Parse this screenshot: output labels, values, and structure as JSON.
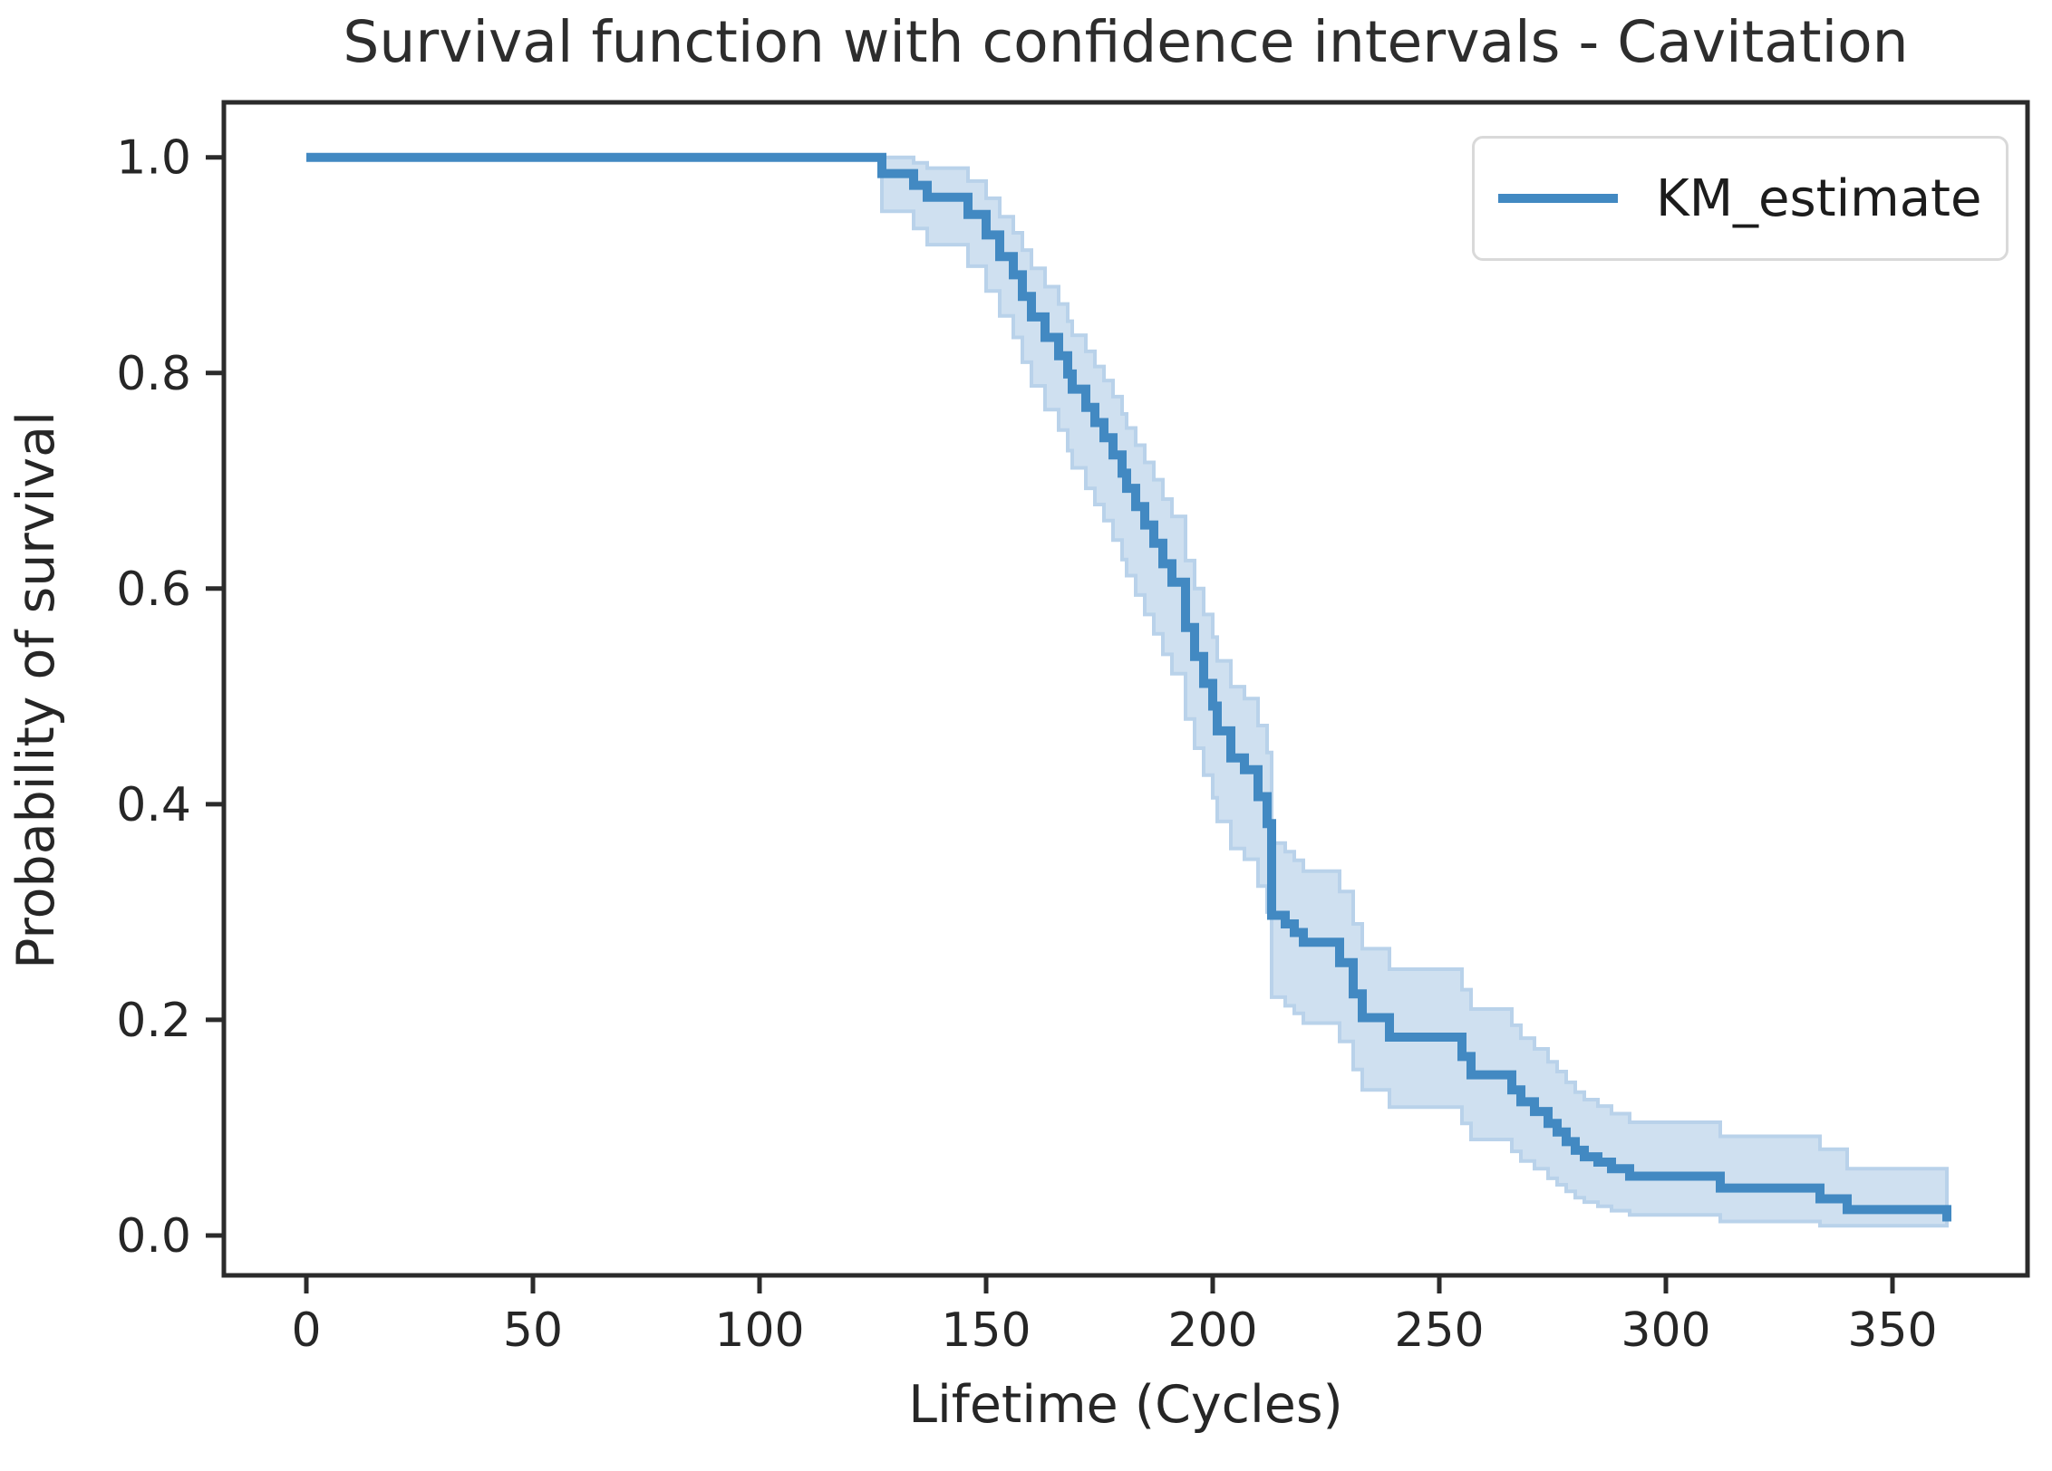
{
  "chart_data": {
    "type": "line",
    "subtype": "kaplan-meier-step-with-confidence-band",
    "title": "Survival function with confidence intervals - Cavitation",
    "xlabel": "Lifetime (Cycles)",
    "ylabel": "Probability of survival",
    "legend": {
      "label": "KM_estimate",
      "position": "upper right"
    },
    "grid": false,
    "xlim": [
      -18.2,
      379.8
    ],
    "ylim": [
      -0.037,
      1.051
    ],
    "x_ticks": {
      "values": [
        0,
        50,
        100,
        150,
        200,
        250,
        300,
        350
      ],
      "labels": [
        "0",
        "50",
        "100",
        "150",
        "200",
        "250",
        "300",
        "350"
      ]
    },
    "y_ticks": {
      "values": [
        0.0,
        0.2,
        0.4,
        0.6,
        0.8,
        1.0
      ],
      "labels": [
        "0.0",
        "0.2",
        "0.4",
        "0.6",
        "0.8",
        "1.0"
      ]
    },
    "series": [
      {
        "name": "KM_estimate",
        "note": "step points: [time_cycles, survival, ci_lower, ci_upper]; ci null before first event",
        "steps": [
          [
            0,
            1.0,
            null,
            null
          ],
          [
            127,
            0.985,
            0.95,
            1.0
          ],
          [
            134,
            0.974,
            0.934,
            0.995
          ],
          [
            137,
            0.963,
            0.919,
            0.99
          ],
          [
            146,
            0.947,
            0.899,
            0.978
          ],
          [
            150,
            0.928,
            0.876,
            0.962
          ],
          [
            153,
            0.908,
            0.853,
            0.945
          ],
          [
            156,
            0.891,
            0.833,
            0.93
          ],
          [
            158,
            0.871,
            0.81,
            0.914
          ],
          [
            160,
            0.852,
            0.788,
            0.897
          ],
          [
            163,
            0.833,
            0.766,
            0.88
          ],
          [
            166,
            0.816,
            0.747,
            0.864
          ],
          [
            168,
            0.799,
            0.728,
            0.848
          ],
          [
            169,
            0.785,
            0.712,
            0.835
          ],
          [
            172,
            0.768,
            0.693,
            0.82
          ],
          [
            174,
            0.754,
            0.678,
            0.806
          ],
          [
            176,
            0.74,
            0.663,
            0.793
          ],
          [
            178,
            0.724,
            0.645,
            0.778
          ],
          [
            180,
            0.707,
            0.627,
            0.762
          ],
          [
            181,
            0.693,
            0.612,
            0.749
          ],
          [
            183,
            0.676,
            0.594,
            0.733
          ],
          [
            185,
            0.659,
            0.576,
            0.717
          ],
          [
            187,
            0.642,
            0.558,
            0.701
          ],
          [
            189,
            0.623,
            0.539,
            0.683
          ],
          [
            191,
            0.606,
            0.521,
            0.667
          ],
          [
            194,
            0.564,
            0.479,
            0.626
          ],
          [
            196,
            0.537,
            0.452,
            0.6
          ],
          [
            198,
            0.512,
            0.427,
            0.576
          ],
          [
            200,
            0.491,
            0.406,
            0.555
          ],
          [
            201,
            0.468,
            0.384,
            0.533
          ],
          [
            204,
            0.443,
            0.359,
            0.509
          ],
          [
            207,
            0.432,
            0.349,
            0.498
          ],
          [
            210,
            0.407,
            0.324,
            0.473
          ],
          [
            212,
            0.382,
            0.3,
            0.448
          ],
          [
            213,
            0.297,
            0.221,
            0.364
          ],
          [
            216,
            0.289,
            0.213,
            0.356
          ],
          [
            218,
            0.281,
            0.206,
            0.348
          ],
          [
            220,
            0.272,
            0.197,
            0.338
          ],
          [
            228,
            0.253,
            0.18,
            0.319
          ],
          [
            231,
            0.224,
            0.154,
            0.289
          ],
          [
            233,
            0.202,
            0.135,
            0.266
          ],
          [
            239,
            0.184,
            0.119,
            0.247
          ],
          [
            255,
            0.166,
            0.104,
            0.228
          ],
          [
            257,
            0.149,
            0.089,
            0.21
          ],
          [
            266,
            0.135,
            0.078,
            0.195
          ],
          [
            268,
            0.124,
            0.069,
            0.183
          ],
          [
            271,
            0.115,
            0.062,
            0.173
          ],
          [
            274,
            0.104,
            0.053,
            0.161
          ],
          [
            276,
            0.096,
            0.047,
            0.152
          ],
          [
            278,
            0.087,
            0.041,
            0.142
          ],
          [
            280,
            0.079,
            0.035,
            0.133
          ],
          [
            282,
            0.073,
            0.031,
            0.126
          ],
          [
            285,
            0.068,
            0.027,
            0.12
          ],
          [
            288,
            0.062,
            0.023,
            0.113
          ],
          [
            292,
            0.055,
            0.019,
            0.105
          ],
          [
            312,
            0.044,
            0.013,
            0.092
          ],
          [
            334,
            0.034,
            0.009,
            0.08
          ],
          [
            340,
            0.024,
            0.009,
            0.062
          ],
          [
            362,
            0.013,
            0.009,
            0.062
          ]
        ]
      }
    ],
    "colors": {
      "line": "#4289c2",
      "band_fill": "#cfe0f0",
      "band_edge": "#b9d2ea",
      "axis": "#2b2b2b",
      "tick_text": "#262626",
      "title_text": "#2d2d2d"
    }
  }
}
